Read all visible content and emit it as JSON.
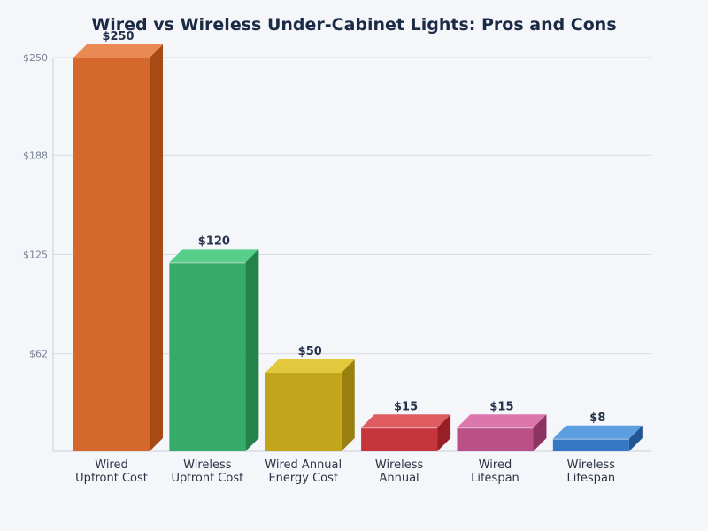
{
  "chart_data": {
    "type": "bar",
    "title": "Wired vs Wireless Under-Cabinet Lights: Pros and Cons",
    "xlabel": "",
    "ylabel": "",
    "ylim": [
      0,
      250
    ],
    "yticks": [
      62,
      125,
      188,
      250
    ],
    "ytick_labels": [
      "$62",
      "$125",
      "$188",
      "$250"
    ],
    "grid": true,
    "style": "3d",
    "categories": [
      [
        "Wired",
        "Upfront Cost"
      ],
      [
        "Wireless",
        "Upfront Cost"
      ],
      [
        "Wired Annual",
        "Energy Cost"
      ],
      [
        "Wireless",
        "Annual"
      ],
      [
        "Wired",
        "Lifespan"
      ],
      [
        "Wireless",
        "Lifespan"
      ]
    ],
    "values": [
      250,
      120,
      50,
      15,
      15,
      8
    ],
    "value_labels": [
      "$250",
      "$120",
      "$50",
      "$15",
      "$15",
      "$8"
    ],
    "colors": [
      {
        "front": "#d4682d",
        "top": "#e88a52",
        "side": "#a84a16"
      },
      {
        "front": "#36ab68",
        "top": "#57cf8b",
        "side": "#23834b"
      },
      {
        "front": "#c3a51c",
        "top": "#e2c83c",
        "side": "#9a800f"
      },
      {
        "front": "#c6353c",
        "top": "#df5d61",
        "side": "#981f25"
      },
      {
        "front": "#bb5086",
        "top": "#db77ac",
        "side": "#8c3362"
      },
      {
        "front": "#3478c4",
        "top": "#5c9ee0",
        "side": "#235692"
      }
    ]
  }
}
